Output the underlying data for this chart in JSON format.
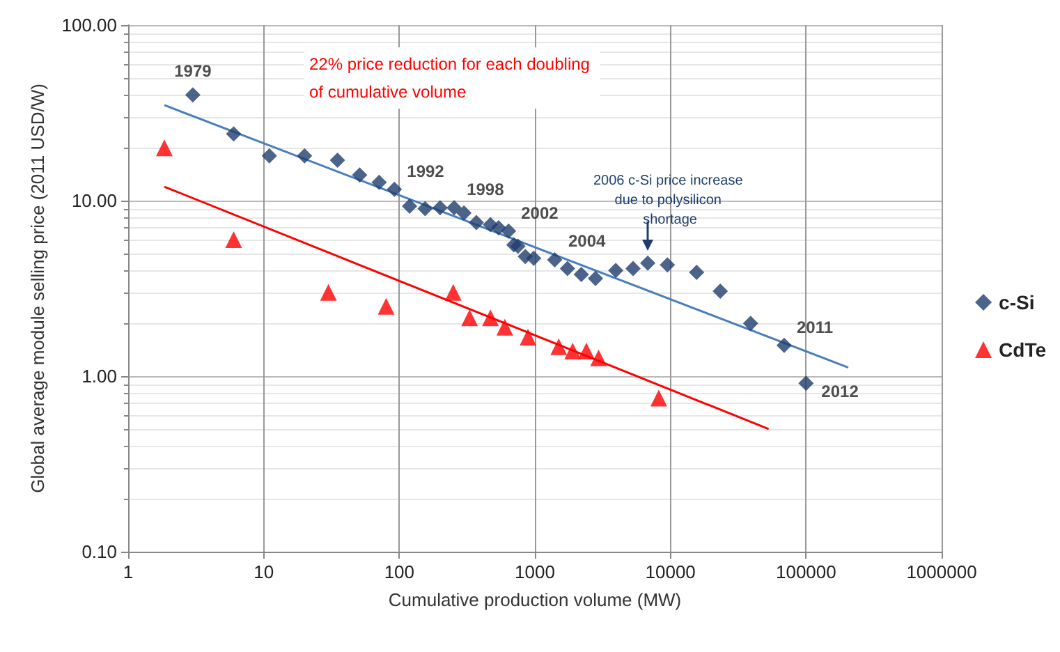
{
  "chart_data": {
    "type": "scatter",
    "xlabel": "Cumulative production volume (MW)",
    "ylabel": "Global average module selling price (2011 USD/W)",
    "log": "xy",
    "grid": true,
    "legend": "right",
    "xlim": [
      1,
      1000000
    ],
    "xticks": [
      1,
      10,
      100,
      1000,
      10000,
      100000,
      1000000
    ],
    "ylim": [
      0.1,
      100
    ],
    "yticks": [
      {
        "value": 0.1,
        "label": "0.10"
      },
      {
        "value": 1,
        "label": "1.00"
      },
      {
        "value": 10,
        "label": "10.00"
      },
      {
        "value": 100,
        "label": "100.00"
      }
    ],
    "annotations": [
      "22% price reduction for each doubling of cumulative volume",
      {
        "text": "2006 c-Si price increase due to polysilicon shortage",
        "x": 6800,
        "y": 4.4
      },
      {
        "text": "1979",
        "x": 3,
        "y": 40
      },
      {
        "text": "1992",
        "x": 92,
        "y": 11.6
      },
      {
        "text": "1998",
        "x": 254,
        "y": 9.1
      },
      {
        "text": "2002",
        "x": 640,
        "y": 6.7
      },
      {
        "text": "2004",
        "x": 2200,
        "y": 3.8
      },
      {
        "text": "2011",
        "x": 69000,
        "y": 1.5
      },
      {
        "text": "2012",
        "x": 100000,
        "y": 0.91
      }
    ],
    "series": [
      {
        "name": "c-Si",
        "color": "#1f3d6b",
        "marker": "diamond",
        "x": [
          3,
          6,
          11,
          20,
          35,
          51,
          71,
          92,
          119,
          155,
          200,
          254,
          300,
          370,
          470,
          540,
          640,
          700,
          750,
          850,
          980,
          1400,
          1740,
          2200,
          2800,
          3950,
          5300,
          6800,
          9500,
          15600,
          23300,
          39000,
          69000,
          100000
        ],
        "values": [
          40,
          24,
          18,
          18,
          17,
          14,
          12.7,
          11.6,
          9.3,
          9.0,
          9.1,
          9.1,
          8.5,
          7.5,
          7.3,
          7.0,
          6.7,
          5.6,
          5.5,
          4.8,
          4.7,
          4.6,
          4.1,
          3.8,
          3.6,
          4.0,
          4.1,
          4.4,
          4.3,
          3.9,
          3.05,
          2.0,
          1.5,
          0.91
        ]
      },
      {
        "name": "CdTe",
        "color": "#ff0000",
        "marker": "triangle",
        "x": [
          1.85,
          6,
          30,
          80,
          250,
          330,
          470,
          600,
          890,
          1500,
          1900,
          2400,
          2950,
          8200
        ],
        "values": [
          20,
          6.0,
          3.0,
          2.5,
          3.0,
          2.15,
          2.15,
          1.9,
          1.67,
          1.47,
          1.39,
          1.39,
          1.27,
          0.75
        ]
      },
      {
        "type": "line",
        "color": "#4a7ebb",
        "marker": "none",
        "x": [
          1.85,
          205000
        ],
        "values": [
          35,
          1.12
        ]
      },
      {
        "type": "line",
        "color": "#ff0000",
        "marker": "none",
        "x": [
          1.85,
          53000
        ],
        "values": [
          12,
          0.5
        ]
      }
    ]
  }
}
